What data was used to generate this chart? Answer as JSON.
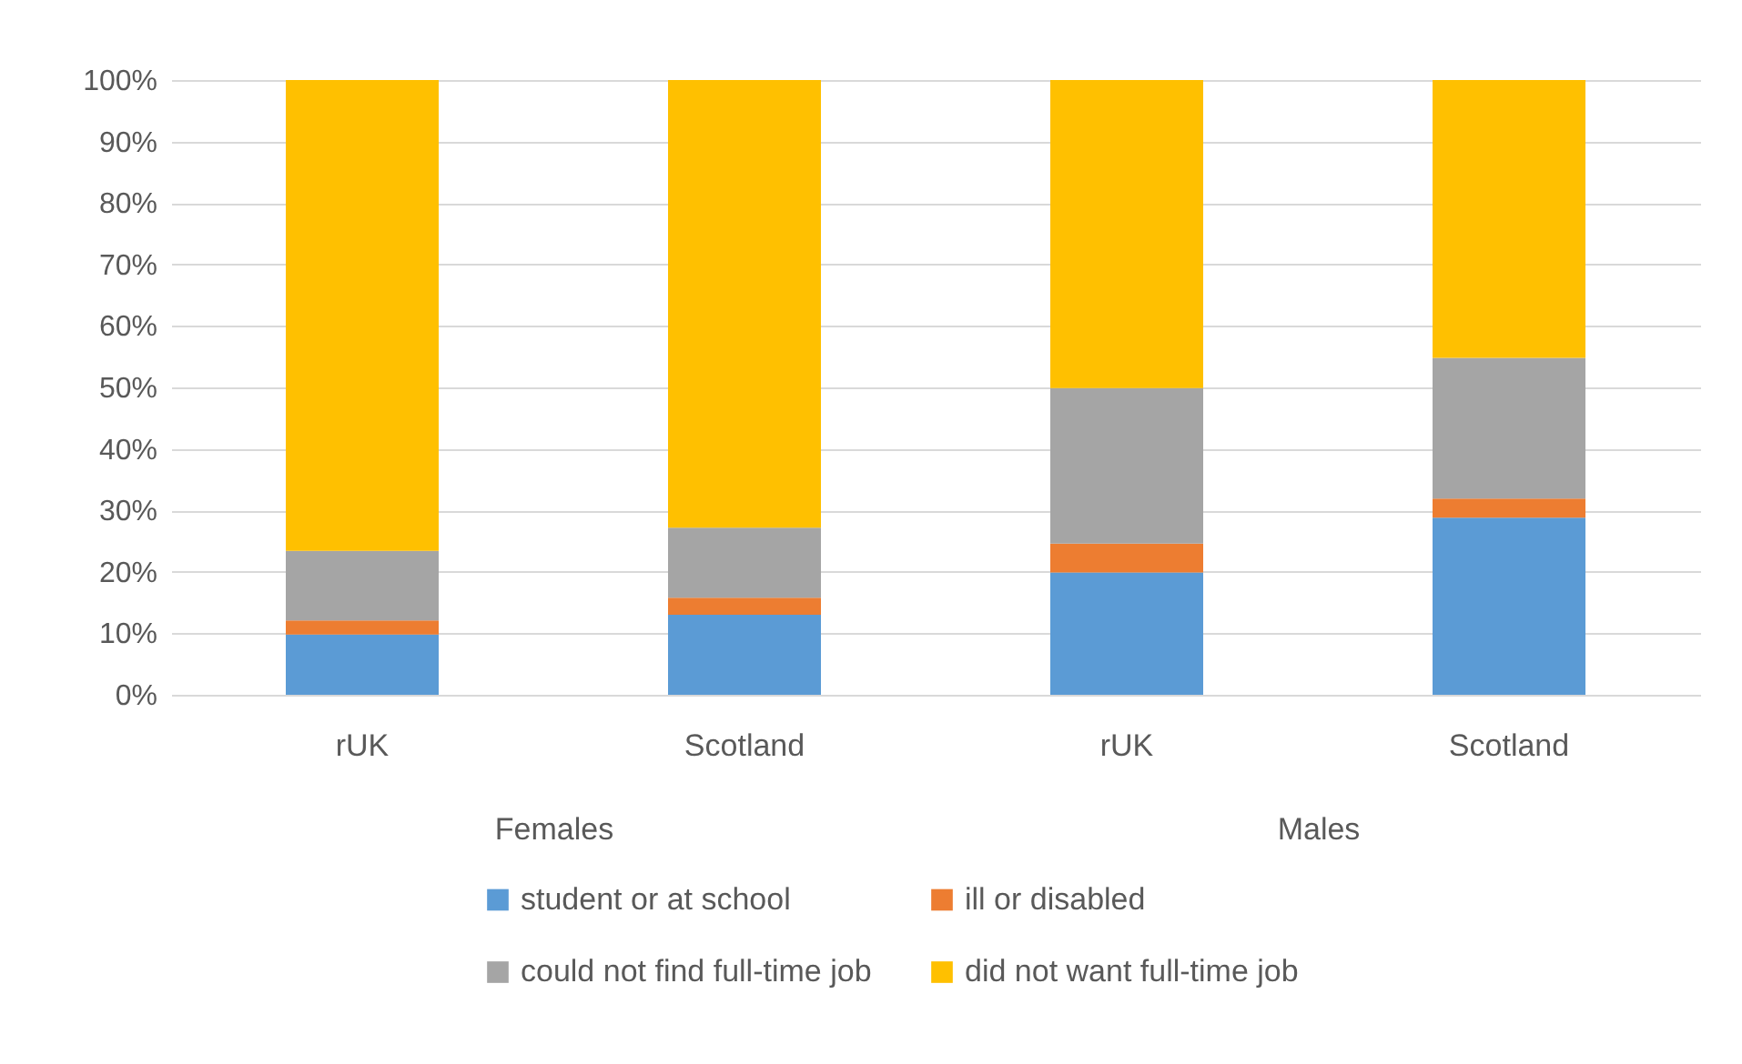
{
  "chart_data": [
    {
      "type": "bar",
      "stacked": true,
      "xlabel": "Females",
      "categories": [
        "rUK",
        "Scotland"
      ],
      "series": [
        {
          "name": "student or at school",
          "color": "#5b9bd5",
          "values": [
            9.8,
            13.0
          ]
        },
        {
          "name": "ill or disabled",
          "color": "#ed7d31",
          "values": [
            2.3,
            2.8
          ]
        },
        {
          "name": "could not find full-time job",
          "color": "#a5a5a5",
          "values": [
            11.3,
            11.4
          ]
        },
        {
          "name": "did not want full-time job",
          "color": "#ffc000",
          "values": [
            76.6,
            72.8
          ]
        }
      ],
      "ylim": [
        0,
        100
      ],
      "yticks": [
        {
          "value": 0,
          "label": "0%"
        },
        {
          "value": 10,
          "label": "10%"
        },
        {
          "value": 20,
          "label": "20%"
        },
        {
          "value": 30,
          "label": "30%"
        },
        {
          "value": 40,
          "label": "40%"
        },
        {
          "value": 50,
          "label": "50%"
        },
        {
          "value": 60,
          "label": "60%"
        },
        {
          "value": 70,
          "label": "70%"
        },
        {
          "value": 80,
          "label": "80%"
        },
        {
          "value": 90,
          "label": "90%"
        },
        {
          "value": 100,
          "label": "100%"
        }
      ],
      "grid": "y",
      "legend": "bottom"
    },
    {
      "type": "bar",
      "stacked": true,
      "xlabel": "Males",
      "categories": [
        "rUK",
        "Scotland"
      ],
      "series": [
        {
          "color": "#5b9bd5",
          "values": [
            19.9,
            28.8
          ]
        },
        {
          "color": "#ed7d31",
          "values": [
            4.7,
            3.1
          ]
        },
        {
          "color": "#a5a5a5",
          "values": [
            25.3,
            22.9
          ]
        },
        {
          "color": "#ffc000",
          "values": [
            50.1,
            45.2
          ]
        }
      ],
      "ylim": [
        0,
        100
      ],
      "yticks": [
        0,
        10,
        20,
        30,
        40,
        50,
        60,
        70,
        80,
        90,
        100
      ],
      "grid": "y",
      "tick_labels": "x"
    }
  ]
}
